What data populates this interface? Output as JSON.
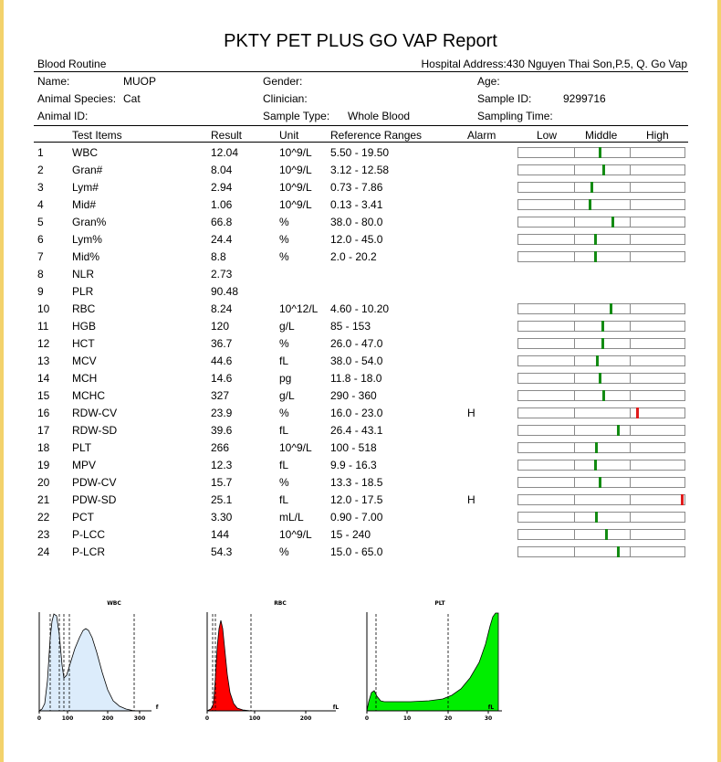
{
  "report": {
    "title": "PKTY PET PLUS GO VAP Report",
    "section": "Blood Routine",
    "hospital_address": "Hospital Address:430 Nguyen Thai Son,P.5, Q. Go Vap"
  },
  "patient": {
    "name_label": "Name:",
    "name": "MUOP",
    "gender_label": "Gender:",
    "gender": "",
    "age_label": "Age:",
    "age": "",
    "species_label": "Animal Species:",
    "species": "Cat",
    "clinician_label": "Clinician:",
    "clinician": "",
    "sample_id_label": "Sample ID:",
    "sample_id": "9299716",
    "animal_id_label": "Animal ID:",
    "animal_id": "",
    "sample_type_label": "Sample Type:",
    "sample_type": "Whole Blood",
    "sampling_time_label": "Sampling Time:",
    "sampling_time": ""
  },
  "table": {
    "headers": {
      "test_items": "Test Items",
      "result": "Result",
      "unit": "Unit",
      "reference": "Reference Ranges",
      "alarm": "Alarm",
      "low": "Low",
      "middle": "Middle",
      "high": "High"
    },
    "rows": [
      {
        "no": "1",
        "item": "WBC",
        "result": "12.04",
        "unit": "10^9/L",
        "ref": "5.50 - 19.50",
        "alarm": "",
        "low": 5.5,
        "high": 19.5
      },
      {
        "no": "2",
        "item": "Gran#",
        "result": "8.04",
        "unit": "10^9/L",
        "ref": "3.12 - 12.58",
        "alarm": "",
        "low": 3.12,
        "high": 12.58
      },
      {
        "no": "3",
        "item": "Lym#",
        "result": "2.94",
        "unit": "10^9/L",
        "ref": "0.73 - 7.86",
        "alarm": "",
        "low": 0.73,
        "high": 7.86
      },
      {
        "no": "4",
        "item": "Mid#",
        "result": "1.06",
        "unit": "10^9/L",
        "ref": "0.13 - 3.41",
        "alarm": "",
        "low": 0.13,
        "high": 3.41
      },
      {
        "no": "5",
        "item": "Gran%",
        "result": "66.8",
        "unit": "%",
        "ref": "38.0 - 80.0",
        "alarm": "",
        "low": 38.0,
        "high": 80.0
      },
      {
        "no": "6",
        "item": "Lym%",
        "result": "24.4",
        "unit": "%",
        "ref": "12.0 - 45.0",
        "alarm": "",
        "low": 12.0,
        "high": 45.0
      },
      {
        "no": "7",
        "item": "Mid%",
        "result": "8.8",
        "unit": "%",
        "ref": "2.0 - 20.2",
        "alarm": "",
        "low": 2.0,
        "high": 20.2
      },
      {
        "no": "8",
        "item": "NLR",
        "result": "2.73",
        "unit": "",
        "ref": "",
        "alarm": "",
        "low": null,
        "high": null
      },
      {
        "no": "9",
        "item": "PLR",
        "result": "90.48",
        "unit": "",
        "ref": "",
        "alarm": "",
        "low": null,
        "high": null
      },
      {
        "no": "10",
        "item": "RBC",
        "result": "8.24",
        "unit": "10^12/L",
        "ref": "4.60 - 10.20",
        "alarm": "",
        "low": 4.6,
        "high": 10.2
      },
      {
        "no": "11",
        "item": "HGB",
        "result": "120",
        "unit": "g/L",
        "ref": "85 - 153",
        "alarm": "",
        "low": 85,
        "high": 153
      },
      {
        "no": "12",
        "item": "HCT",
        "result": "36.7",
        "unit": "%",
        "ref": "26.0 - 47.0",
        "alarm": "",
        "low": 26.0,
        "high": 47.0
      },
      {
        "no": "13",
        "item": "MCV",
        "result": "44.6",
        "unit": "fL",
        "ref": "38.0 - 54.0",
        "alarm": "",
        "low": 38.0,
        "high": 54.0
      },
      {
        "no": "14",
        "item": "MCH",
        "result": "14.6",
        "unit": "pg",
        "ref": "11.8 - 18.0",
        "alarm": "",
        "low": 11.8,
        "high": 18.0
      },
      {
        "no": "15",
        "item": "MCHC",
        "result": "327",
        "unit": "g/L",
        "ref": "290 - 360",
        "alarm": "",
        "low": 290,
        "high": 360
      },
      {
        "no": "16",
        "item": "RDW-CV",
        "result": "23.9",
        "unit": "%",
        "ref": "16.0 - 23.0",
        "alarm": "H",
        "low": 16.0,
        "high": 23.0
      },
      {
        "no": "17",
        "item": "RDW-SD",
        "result": "39.6",
        "unit": "fL",
        "ref": "26.4 - 43.1",
        "alarm": "",
        "low": 26.4,
        "high": 43.1
      },
      {
        "no": "18",
        "item": "PLT",
        "result": "266",
        "unit": "10^9/L",
        "ref": "100 - 518",
        "alarm": "",
        "low": 100,
        "high": 518
      },
      {
        "no": "19",
        "item": "MPV",
        "result": "12.3",
        "unit": "fL",
        "ref": "9.9 - 16.3",
        "alarm": "",
        "low": 9.9,
        "high": 16.3
      },
      {
        "no": "20",
        "item": "PDW-CV",
        "result": "15.7",
        "unit": "%",
        "ref": "13.3 - 18.5",
        "alarm": "",
        "low": 13.3,
        "high": 18.5
      },
      {
        "no": "21",
        "item": "PDW-SD",
        "result": "25.1",
        "unit": "fL",
        "ref": "12.0 - 17.5",
        "alarm": "H",
        "low": 12.0,
        "high": 17.5
      },
      {
        "no": "22",
        "item": "PCT",
        "result": "3.30",
        "unit": "mL/L",
        "ref": "0.90 - 7.00",
        "alarm": "",
        "low": 0.9,
        "high": 7.0
      },
      {
        "no": "23",
        "item": "P-LCC",
        "result": "144",
        "unit": "10^9/L",
        "ref": "15 - 240",
        "alarm": "",
        "low": 15,
        "high": 240
      },
      {
        "no": "24",
        "item": "P-LCR",
        "result": "54.3",
        "unit": "%",
        "ref": "15.0 - 65.0",
        "alarm": "",
        "low": 15.0,
        "high": 65.0
      }
    ]
  },
  "histograms": [
    {
      "key": "wbc",
      "title": "WBC",
      "unit": "fL",
      "color": "#dcecfb",
      "ticks": [
        "0",
        "100",
        "200",
        "300"
      ]
    },
    {
      "key": "rbc",
      "title": "RBC",
      "unit": "fL",
      "color": "#ff0000",
      "ticks": [
        "0",
        "100",
        "200"
      ]
    },
    {
      "key": "plt",
      "title": "PLT",
      "unit": "fL",
      "color": "#00ee00",
      "ticks": [
        "0",
        "10",
        "20",
        "30"
      ]
    }
  ]
}
